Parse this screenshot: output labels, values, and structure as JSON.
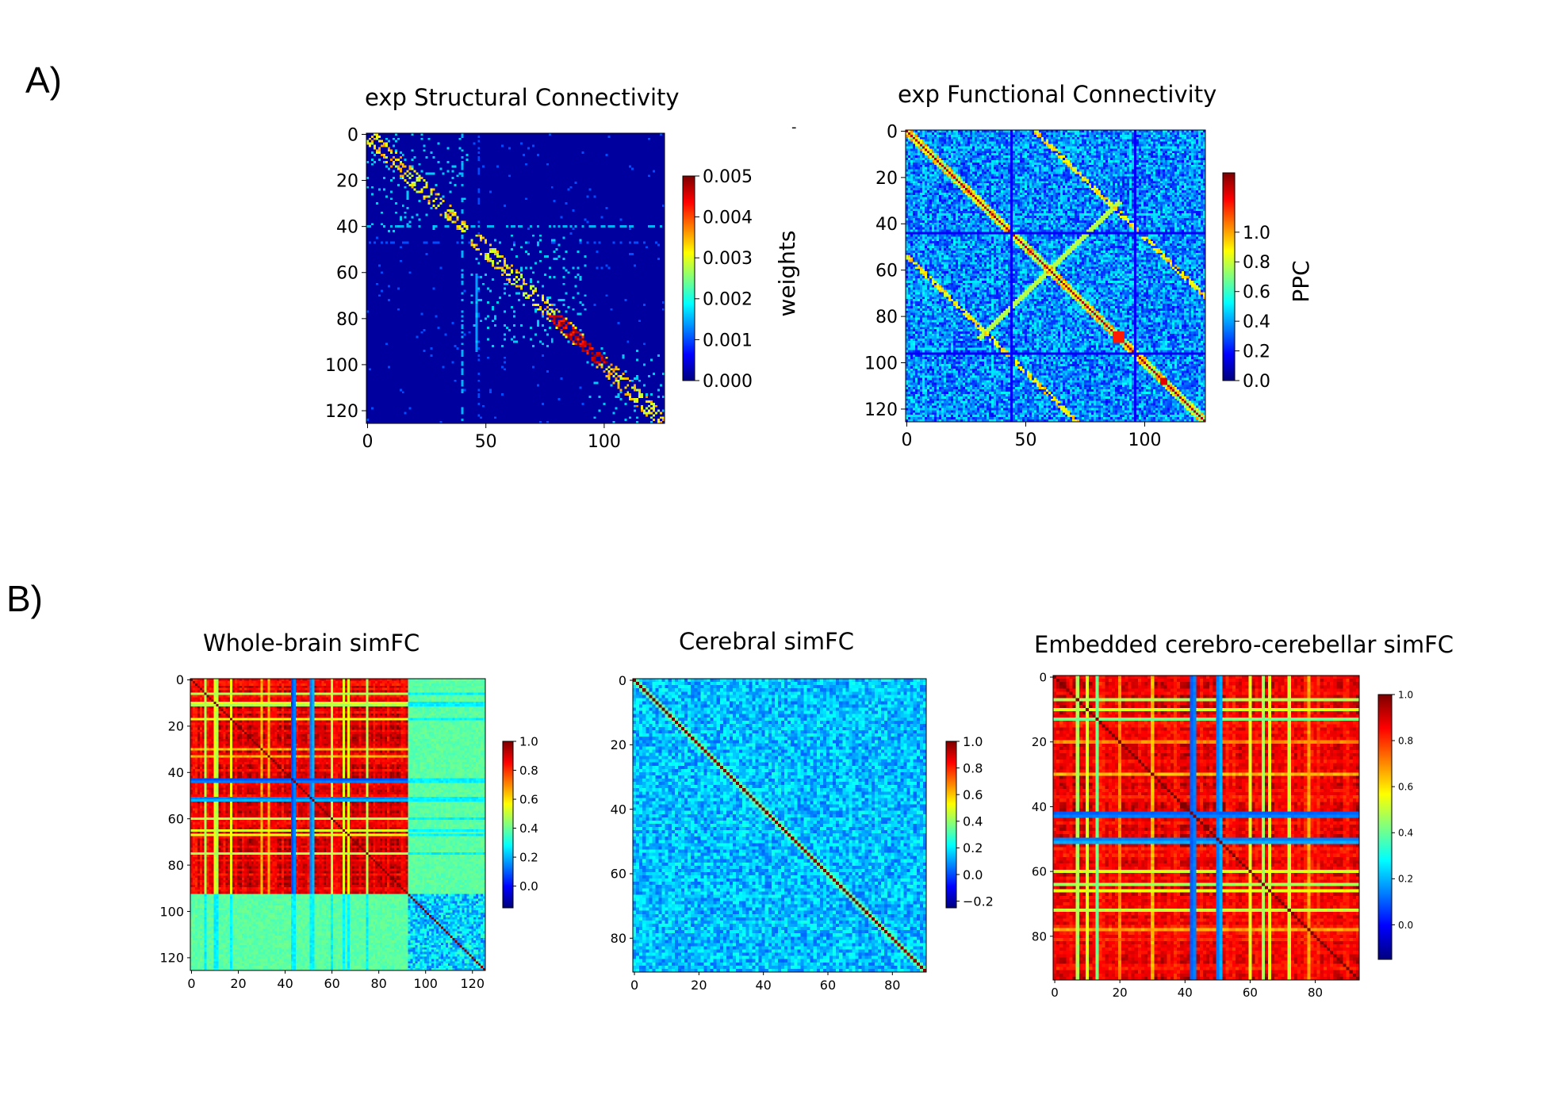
{
  "figure": {
    "panel_labels": [
      "A)",
      "B)"
    ],
    "stray_mark": "-"
  },
  "chart_data": [
    {
      "id": "sc",
      "type": "heatmap",
      "title": "exp Structural Connectivity",
      "matrix_size": 126,
      "pattern": "sparse-structural",
      "xticks": [
        0,
        50,
        100
      ],
      "yticks": [
        0,
        20,
        40,
        60,
        80,
        100,
        120
      ],
      "xlim": [
        0,
        125
      ],
      "ylim": [
        125,
        0
      ],
      "colormap": "jet",
      "colorbar": {
        "label": "weights",
        "range": [
          0.0,
          0.005
        ],
        "ticks": [
          "0.000",
          "0.001",
          "0.002",
          "0.003",
          "0.004",
          "0.005"
        ]
      }
    },
    {
      "id": "fc",
      "type": "heatmap",
      "title": "exp Functional Connectivity",
      "matrix_size": 126,
      "pattern": "functional",
      "xticks": [
        0,
        50,
        100
      ],
      "yticks": [
        0,
        20,
        40,
        60,
        80,
        100,
        120
      ],
      "xlim": [
        0,
        125
      ],
      "ylim": [
        125,
        0
      ],
      "colormap": "jet",
      "colorbar": {
        "label": "PPC",
        "range": [
          0.0,
          1.4
        ],
        "ticks": [
          "0.0",
          "0.2",
          "0.4",
          "0.6",
          "0.8",
          "1.0"
        ]
      }
    },
    {
      "id": "wb",
      "type": "heatmap",
      "title": "Whole-brain simFC",
      "matrix_size": 126,
      "pattern": "whole-brain",
      "block_split": 93,
      "xticks": [
        0,
        20,
        40,
        60,
        80,
        100,
        120
      ],
      "yticks": [
        0,
        20,
        40,
        60,
        80,
        100,
        120
      ],
      "xlim": [
        0,
        125
      ],
      "ylim": [
        125,
        0
      ],
      "colormap": "jet",
      "colorbar": {
        "label": "",
        "range": [
          -0.15,
          1.0
        ],
        "ticks": [
          "0.0",
          "0.2",
          "0.4",
          "0.6",
          "0.8",
          "1.0"
        ]
      }
    },
    {
      "id": "cer",
      "type": "heatmap",
      "title": "Cerebral simFC",
      "matrix_size": 91,
      "pattern": "noise-diagonal",
      "xticks": [
        0,
        20,
        40,
        60,
        80
      ],
      "yticks": [
        0,
        20,
        40,
        60,
        80
      ],
      "xlim": [
        0,
        90
      ],
      "ylim": [
        90,
        0
      ],
      "colormap": "jet",
      "colorbar": {
        "label": "",
        "range": [
          -0.25,
          1.0
        ],
        "ticks": [
          "−0.2",
          "0.0",
          "0.2",
          "0.4",
          "0.6",
          "0.8",
          "1.0"
        ]
      }
    },
    {
      "id": "emb",
      "type": "heatmap",
      "title": "Embedded cerebro-cerebellar simFC",
      "matrix_size": 94,
      "pattern": "embedded",
      "xticks": [
        0,
        20,
        40,
        60,
        80
      ],
      "yticks": [
        0,
        20,
        40,
        60,
        80
      ],
      "xlim": [
        0,
        93
      ],
      "ylim": [
        93,
        0
      ],
      "colormap": "jet",
      "colorbar": {
        "label": "",
        "range": [
          -0.15,
          1.0
        ],
        "ticks": [
          "0.0",
          "0.2",
          "0.4",
          "0.6",
          "0.8",
          "1.0"
        ]
      }
    }
  ]
}
